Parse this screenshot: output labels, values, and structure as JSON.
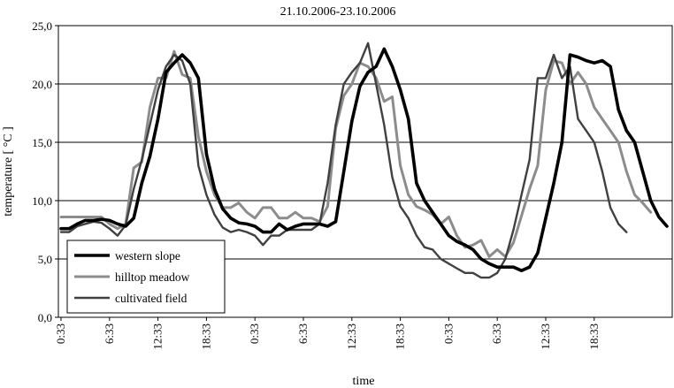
{
  "chart_data": {
    "type": "line",
    "title": "21.10.2006-23.10.2006",
    "xlabel": "time",
    "ylabel": "temperature [ °C ]",
    "ylim": [
      0,
      25
    ],
    "yticks": [
      "0,0",
      "5,0",
      "10,0",
      "15,0",
      "20,0",
      "25,0"
    ],
    "x_tick_labels": [
      "0:33",
      "6:33",
      "12:33",
      "18:33",
      "0:33",
      "6:33",
      "12:33",
      "18:33",
      "0:33",
      "6:33",
      "12:33",
      "18:33"
    ],
    "x_hours_per_point": 1,
    "grid": "horizontal",
    "legend_position": "bottom-left",
    "series": [
      {
        "name": "western slope",
        "color": "#000000",
        "values": [
          7.6,
          7.6,
          8.0,
          8.3,
          8.3,
          8.4,
          8.3,
          8.0,
          7.8,
          8.5,
          11.5,
          13.8,
          17.0,
          21.0,
          21.8,
          22.5,
          21.8,
          20.5,
          14.0,
          11.0,
          9.3,
          8.5,
          8.1,
          8.0,
          7.8,
          7.3,
          7.3,
          8.0,
          7.5,
          7.8,
          8.0,
          8.0,
          8.0,
          7.8,
          8.2,
          12.5,
          16.8,
          19.8,
          21.0,
          21.5,
          23.0,
          21.5,
          19.5,
          17.0,
          11.5,
          10.0,
          9.0,
          8.0,
          7.0,
          6.5,
          6.2,
          5.8,
          5.0,
          4.6,
          4.3,
          4.3,
          4.3,
          4.0,
          4.3,
          5.5,
          8.5,
          11.5,
          15.0,
          22.5,
          22.3,
          22.0,
          21.8,
          22.0,
          21.5,
          17.8,
          16.0,
          15.0,
          12.5,
          10.0,
          8.6,
          7.8
        ]
      },
      {
        "name": "hilltop meadow",
        "color": "#8c8c8c",
        "values": [
          8.6,
          8.6,
          8.6,
          8.6,
          8.6,
          8.6,
          8.0,
          7.6,
          8.0,
          12.8,
          13.3,
          18.0,
          20.5,
          20.5,
          22.8,
          20.8,
          20.5,
          15.5,
          12.5,
          10.5,
          9.4,
          9.4,
          9.8,
          9.0,
          8.5,
          9.4,
          9.4,
          8.5,
          8.5,
          9.0,
          8.5,
          8.5,
          8.2,
          9.5,
          16.2,
          19.0,
          20.0,
          21.8,
          21.5,
          20.5,
          18.5,
          18.9,
          13.0,
          10.5,
          9.5,
          9.2,
          8.8,
          8.0,
          8.6,
          7.0,
          6.0,
          6.2,
          6.6,
          5.2,
          5.8,
          5.2,
          6.4,
          8.7,
          11.0,
          13.0,
          19.5,
          22.0,
          21.8,
          20.0,
          21.0,
          20.0,
          18.0,
          17.0,
          16.0,
          15.0,
          12.5,
          10.5,
          9.8,
          9.0
        ]
      },
      {
        "name": "cultivated field",
        "color": "#404040",
        "values": [
          7.3,
          7.3,
          7.8,
          8.0,
          8.2,
          8.1,
          7.6,
          7.0,
          7.9,
          11.0,
          13.5,
          16.5,
          19.5,
          21.5,
          22.5,
          22.0,
          20.0,
          13.0,
          10.5,
          8.8,
          7.7,
          7.3,
          7.5,
          7.3,
          7.0,
          6.2,
          7.0,
          7.0,
          7.5,
          7.5,
          7.5,
          7.5,
          8.0,
          11.5,
          16.5,
          20.0,
          21.0,
          21.8,
          23.5,
          20.0,
          16.5,
          12.0,
          9.5,
          8.5,
          7.0,
          6.0,
          5.8,
          5.0,
          4.6,
          4.2,
          3.8,
          3.8,
          3.4,
          3.4,
          3.8,
          5.0,
          7.5,
          10.5,
          13.5,
          20.5,
          20.5,
          22.5,
          20.5,
          21.5,
          17.0,
          16.0,
          15.0,
          12.5,
          9.4,
          8.0,
          7.3
        ]
      }
    ]
  }
}
